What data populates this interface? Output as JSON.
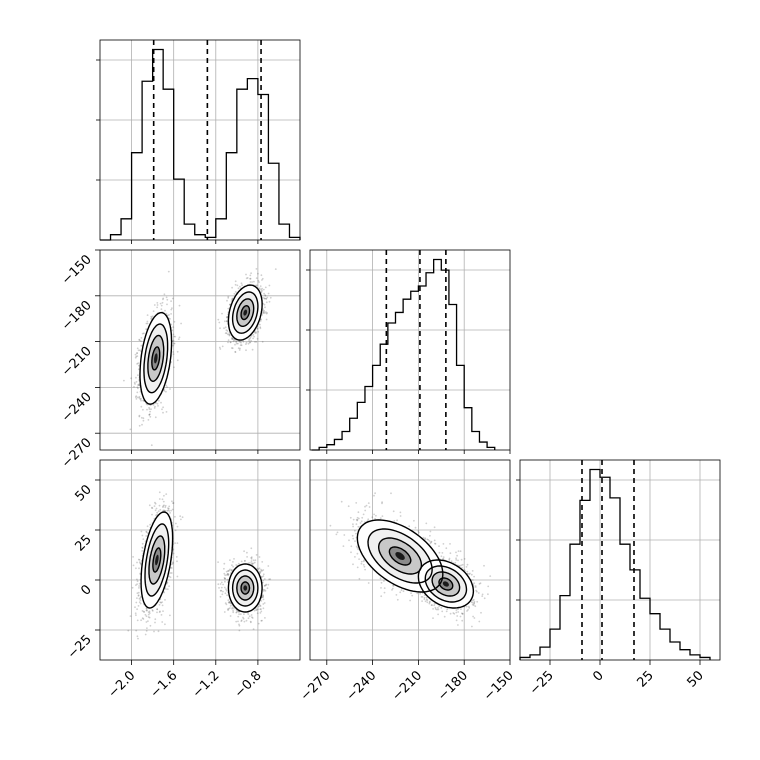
{
  "chart_data": {
    "type": "corner",
    "title": "",
    "colors": {
      "line": "#000000",
      "grid": "#b0b0b0",
      "points": "#555555"
    },
    "grid": true,
    "parameters": [
      {
        "index": 0,
        "range": [
          -2.3,
          -0.4
        ],
        "ticks": [
          -2.0,
          -1.6,
          -1.2,
          -0.8
        ],
        "tick_labels": [
          "−2.0",
          "−1.6",
          "−1.2",
          "−0.8"
        ],
        "quantiles": [
          -1.79,
          -1.28,
          -0.77
        ]
      },
      {
        "index": 1,
        "range": [
          -281,
          -150
        ],
        "ticks": [
          -150,
          -180,
          -210,
          -240,
          -270
        ],
        "tick_labels": [
          "−150",
          "−180",
          "−210",
          "−240",
          "−270"
        ],
        "quantiles": [
          -231,
          -209,
          -192
        ]
      },
      {
        "index": 2,
        "range": [
          -40,
          60
        ],
        "ticks": [
          -25,
          0,
          25,
          50
        ],
        "tick_labels": [
          "−25",
          "0",
          "25",
          "50"
        ],
        "quantiles": [
          -9,
          1,
          17
        ]
      }
    ],
    "x_tick_labels_param1": [
      "−270",
      "−240",
      "−210",
      "−180",
      "−150"
    ],
    "x_ticks_param1": [
      -270,
      -240,
      -210,
      -180,
      -150
    ],
    "histograms": [
      {
        "param": 0,
        "bin_edges": [
          -2.3,
          -2.2,
          -2.1,
          -2.0,
          -1.9,
          -1.8,
          -1.7,
          -1.6,
          -1.5,
          -1.4,
          -1.3,
          -1.2,
          -1.1,
          -1.0,
          -0.9,
          -0.8,
          -0.7,
          -0.6,
          -0.5,
          -0.4
        ],
        "counts": [
          0,
          2,
          8,
          33,
          60,
          72,
          57,
          23,
          6,
          2,
          1,
          8,
          33,
          57,
          61,
          55,
          29,
          6,
          1
        ]
      },
      {
        "param": 1,
        "bin_edges": [
          -280,
          -275,
          -270,
          -265,
          -260,
          -255,
          -250,
          -245,
          -240,
          -235,
          -230,
          -225,
          -220,
          -215,
          -210,
          -205,
          -200,
          -195,
          -190,
          -185,
          -180,
          -175,
          -170,
          -165,
          -160
        ],
        "counts": [
          0,
          1,
          2,
          4,
          7,
          12,
          18,
          24,
          32,
          40,
          48,
          52,
          57,
          60,
          62,
          67,
          72,
          68,
          55,
          32,
          16,
          7,
          3,
          1
        ]
      },
      {
        "param": 2,
        "bin_edges": [
          -40,
          -35,
          -30,
          -25,
          -20,
          -15,
          -10,
          -5,
          0,
          5,
          10,
          15,
          20,
          25,
          30,
          35,
          40,
          45,
          50,
          55
        ],
        "counts": [
          1,
          2,
          5,
          12,
          25,
          45,
          62,
          74,
          71,
          63,
          45,
          35,
          24,
          18,
          12,
          7,
          4,
          2,
          1
        ]
      }
    ],
    "panels_2d": [
      {
        "x_param": 0,
        "y_param": 1,
        "clusters": [
          {
            "mean": [
              -1.77,
              -221
            ],
            "sd": [
              0.075,
              15
            ],
            "rho": 0.35,
            "weight": 0.5
          },
          {
            "mean": [
              -0.92,
              -191
            ],
            "sd": [
              0.08,
              9
            ],
            "rho": 0.3,
            "weight": 0.5
          }
        ]
      },
      {
        "x_param": 0,
        "y_param": 2,
        "clusters": [
          {
            "mean": [
              -1.76,
              10
            ],
            "sd": [
              0.075,
              12
            ],
            "rho": 0.45,
            "weight": 0.5
          },
          {
            "mean": [
              -0.92,
              -4
            ],
            "sd": [
              0.08,
              6
            ],
            "rho": 0.0,
            "weight": 0.5
          }
        ]
      },
      {
        "x_param": 1,
        "y_param": 2,
        "clusters": [
          {
            "mean": [
              -222,
              12
            ],
            "sd": [
              14,
              9
            ],
            "rho": -0.5,
            "weight": 0.5
          },
          {
            "mean": [
              -192,
              -2
            ],
            "sd": [
              9,
              6
            ],
            "rho": -0.3,
            "weight": 0.5
          }
        ]
      }
    ]
  }
}
